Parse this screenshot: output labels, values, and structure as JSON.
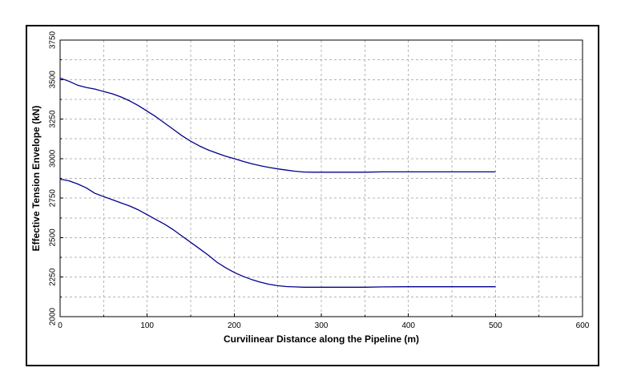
{
  "chart_data": {
    "type": "line",
    "title": "",
    "xlabel": "Curvilinear Distance along the Pipeline (m)",
    "ylabel": "Effective Tension Envelope (kN)",
    "xlim": [
      0,
      600
    ],
    "ylim": [
      2000,
      3750
    ],
    "xticks": [
      0,
      100,
      200,
      300,
      400,
      500,
      600
    ],
    "yticks": [
      2000,
      2250,
      2500,
      2750,
      3000,
      3250,
      3500,
      3750
    ],
    "x_minor_step": 50,
    "y_minor_step": 125,
    "grid": true,
    "legend": "none",
    "series": [
      {
        "color": "#00008b",
        "x": [
          0,
          10,
          20,
          30,
          40,
          50,
          60,
          70,
          80,
          90,
          100,
          110,
          120,
          130,
          140,
          150,
          160,
          170,
          180,
          190,
          200,
          210,
          220,
          230,
          240,
          250,
          260,
          270,
          280,
          290,
          300,
          350,
          370,
          400,
          450,
          500
        ],
        "y": [
          3510,
          3490,
          3465,
          3450,
          3440,
          3425,
          3410,
          3390,
          3365,
          3335,
          3300,
          3265,
          3225,
          3185,
          3145,
          3110,
          3080,
          3055,
          3035,
          3015,
          3000,
          2983,
          2968,
          2955,
          2944,
          2935,
          2927,
          2920,
          2915,
          2914,
          2914,
          2914,
          2916,
          2916,
          2916,
          2916
        ]
      },
      {
        "color": "#00008b",
        "x": [
          0,
          10,
          20,
          30,
          40,
          50,
          60,
          70,
          80,
          90,
          100,
          110,
          120,
          130,
          140,
          150,
          160,
          170,
          180,
          190,
          200,
          210,
          220,
          230,
          240,
          250,
          260,
          270,
          280,
          290,
          300,
          350,
          370,
          400,
          450,
          500
        ],
        "y": [
          2870,
          2860,
          2840,
          2815,
          2780,
          2760,
          2740,
          2720,
          2700,
          2675,
          2645,
          2615,
          2585,
          2550,
          2510,
          2470,
          2430,
          2390,
          2345,
          2310,
          2280,
          2255,
          2235,
          2218,
          2205,
          2196,
          2190,
          2188,
          2186,
          2186,
          2186,
          2186,
          2188,
          2189,
          2189,
          2189
        ]
      }
    ]
  }
}
